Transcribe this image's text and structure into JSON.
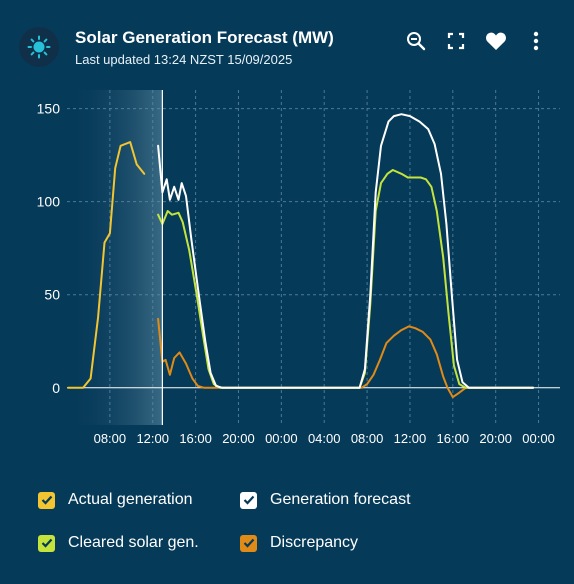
{
  "header": {
    "title": "Solar Generation Forecast (MW)",
    "subtitle": "Last updated 13:24 NZST 15/09/2025",
    "logo_icon": "sun-icon",
    "tools": [
      "zoom-out-icon",
      "fullscreen-icon",
      "heart-icon",
      "more-vertical-icon"
    ]
  },
  "colors": {
    "background": "#063a59",
    "actual": "#f2c531",
    "forecast": "#ffffff",
    "cleared": "#c4e43b",
    "discrepancy": "#e08a17"
  },
  "legend": {
    "actual": "Actual generation",
    "forecast": "Generation forecast",
    "cleared": "Cleared solar gen.",
    "discrepancy": "Discrepancy"
  },
  "chart_data": {
    "type": "line",
    "ylim": [
      -20,
      160
    ],
    "yticks": [
      0,
      50,
      100,
      150
    ],
    "xlim": [
      4.0,
      50.0
    ],
    "xticks": [
      {
        "x": 8,
        "label": "08:00"
      },
      {
        "x": 12,
        "label": "12:00"
      },
      {
        "x": 16,
        "label": "16:00"
      },
      {
        "x": 20,
        "label": "20:00"
      },
      {
        "x": 24,
        "label": "00:00"
      },
      {
        "x": 28,
        "label": "04:00"
      },
      {
        "x": 32,
        "label": "08:00"
      },
      {
        "x": 36,
        "label": "12:00"
      },
      {
        "x": 40,
        "label": "16:00"
      },
      {
        "x": 44,
        "label": "20:00"
      },
      {
        "x": 48,
        "label": "00:00"
      }
    ],
    "current_time_x": 12.9,
    "grid": true,
    "series": [
      {
        "key": "actual",
        "name": "Actual generation",
        "points": [
          [
            4.1,
            0
          ],
          [
            5.5,
            0
          ],
          [
            6.2,
            5
          ],
          [
            6.9,
            38
          ],
          [
            7.5,
            78
          ],
          [
            8.0,
            83
          ],
          [
            8.5,
            118
          ],
          [
            9.0,
            130
          ],
          [
            9.9,
            132
          ],
          [
            10.5,
            120
          ],
          [
            11.2,
            115
          ]
        ]
      },
      {
        "key": "forecast",
        "name": "Generation forecast",
        "points": [
          [
            12.5,
            130
          ],
          [
            12.9,
            105
          ],
          [
            13.3,
            112
          ],
          [
            13.6,
            101
          ],
          [
            14.0,
            108
          ],
          [
            14.4,
            101
          ],
          [
            14.7,
            110
          ],
          [
            15.1,
            103
          ],
          [
            15.6,
            80
          ],
          [
            16.3,
            50
          ],
          [
            16.9,
            25
          ],
          [
            17.4,
            8
          ],
          [
            17.9,
            1
          ],
          [
            18.5,
            0
          ],
          [
            30,
            0
          ],
          [
            31.3,
            0
          ],
          [
            31.8,
            10
          ],
          [
            32.3,
            50
          ],
          [
            32.8,
            105
          ],
          [
            33.3,
            130
          ],
          [
            34.0,
            143
          ],
          [
            34.5,
            146
          ],
          [
            35.2,
            147
          ],
          [
            36.0,
            146
          ],
          [
            36.9,
            143
          ],
          [
            37.7,
            139
          ],
          [
            38.3,
            131
          ],
          [
            38.9,
            115
          ],
          [
            39.4,
            88
          ],
          [
            39.9,
            50
          ],
          [
            40.4,
            15
          ],
          [
            40.9,
            3
          ],
          [
            41.5,
            0
          ],
          [
            47.5,
            0
          ]
        ]
      },
      {
        "key": "cleared",
        "name": "Cleared solar gen.",
        "points": [
          [
            12.5,
            93
          ],
          [
            12.9,
            88
          ],
          [
            13.4,
            95
          ],
          [
            13.8,
            93
          ],
          [
            14.4,
            94
          ],
          [
            14.8,
            89
          ],
          [
            15.4,
            74
          ],
          [
            16.1,
            50
          ],
          [
            16.7,
            28
          ],
          [
            17.2,
            10
          ],
          [
            17.7,
            2
          ],
          [
            18.3,
            0
          ],
          [
            30,
            0
          ],
          [
            31.3,
            0
          ],
          [
            31.8,
            8
          ],
          [
            32.3,
            45
          ],
          [
            32.8,
            95
          ],
          [
            33.3,
            110
          ],
          [
            33.9,
            115
          ],
          [
            34.4,
            117
          ],
          [
            35.2,
            115
          ],
          [
            35.8,
            113
          ],
          [
            37.0,
            113
          ],
          [
            37.5,
            112
          ],
          [
            38.0,
            108
          ],
          [
            38.5,
            95
          ],
          [
            39.1,
            70
          ],
          [
            39.6,
            40
          ],
          [
            40.1,
            12
          ],
          [
            40.6,
            2
          ],
          [
            41.2,
            0
          ],
          [
            47.5,
            0
          ]
        ]
      },
      {
        "key": "discrepancy",
        "name": "Discrepancy",
        "points": [
          [
            12.5,
            37
          ],
          [
            12.9,
            14
          ],
          [
            13.2,
            15
          ],
          [
            13.6,
            7
          ],
          [
            14.0,
            16
          ],
          [
            14.5,
            19
          ],
          [
            15.1,
            13
          ],
          [
            15.7,
            5
          ],
          [
            16.2,
            1
          ],
          [
            16.8,
            0
          ],
          [
            30,
            0
          ],
          [
            31.5,
            0
          ],
          [
            32.0,
            2
          ],
          [
            32.6,
            7
          ],
          [
            33.2,
            15
          ],
          [
            33.8,
            24
          ],
          [
            34.5,
            28
          ],
          [
            35.2,
            31
          ],
          [
            35.9,
            33
          ],
          [
            36.5,
            32
          ],
          [
            37.2,
            30
          ],
          [
            37.9,
            26
          ],
          [
            38.5,
            18
          ],
          [
            39.1,
            6
          ],
          [
            39.5,
            0
          ],
          [
            40.0,
            -5
          ],
          [
            40.5,
            -3
          ],
          [
            41.2,
            0
          ],
          [
            47.5,
            0
          ]
        ]
      }
    ]
  }
}
